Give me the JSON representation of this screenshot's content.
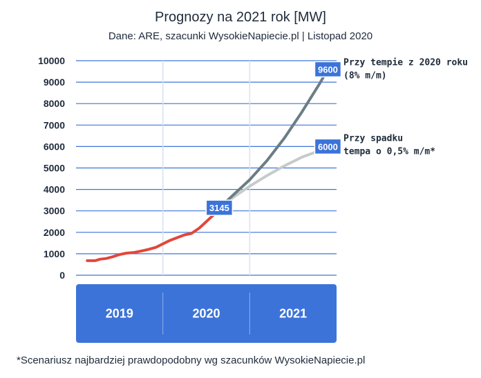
{
  "title": "Prognozy na 2021 rok [MW]",
  "subtitle": "Dane: ARE, szacunki WysokieNapiecie.pl | Listopad 2020",
  "footnote": "*Scenariusz najbardziej prawdopodobny wg szacunków WysokieNapiecie.pl",
  "colors": {
    "history": "#e2473a",
    "scenario_high": "#6b7d85",
    "scenario_low": "#c5cbcb",
    "year_band": "#3c73d9",
    "label_box": "#3c73d9",
    "grid": "#3c73d9"
  },
  "chart_data": {
    "type": "line",
    "title": "Prognozy na 2021 rok [MW]",
    "subtitle": "Dane: ARE, szacunki WysokieNapiecie.pl | Listopad 2020",
    "x_categories": [
      "2019",
      "2020",
      "2021"
    ],
    "x_range": [
      2019.0,
      2022.0
    ],
    "ylim": [
      0,
      10000
    ],
    "yticks": [
      0,
      1000,
      2000,
      3000,
      4000,
      5000,
      6000,
      7000,
      8000,
      9000,
      10000
    ],
    "grid": true,
    "series": [
      {
        "key": "history",
        "x": [
          2019.13,
          2019.22,
          2019.28,
          2019.35,
          2019.42,
          2019.5,
          2019.58,
          2019.67,
          2019.75,
          2019.83,
          2019.92,
          2020.0,
          2020.08,
          2020.17,
          2020.25,
          2020.33,
          2020.42,
          2020.5,
          2020.58,
          2020.65
        ],
        "values": [
          680,
          680,
          750,
          780,
          860,
          960,
          1030,
          1060,
          1130,
          1200,
          1300,
          1460,
          1620,
          1760,
          1880,
          1950,
          2200,
          2500,
          2800,
          3145
        ]
      },
      {
        "key": "high",
        "name": "Przy tempie z 2020 roku (8% m/m)",
        "x": [
          2020.65,
          2020.8,
          2021.0,
          2021.2,
          2021.4,
          2021.6,
          2021.8,
          2021.9
        ],
        "values": [
          3145,
          3700,
          4450,
          5350,
          6400,
          7600,
          8900,
          9600
        ]
      },
      {
        "key": "low",
        "name": "Przy spadku tempa o 0,5% m/m*",
        "x": [
          2020.65,
          2020.8,
          2021.0,
          2021.2,
          2021.4,
          2021.6,
          2021.8,
          2021.9
        ],
        "values": [
          3145,
          3600,
          4150,
          4650,
          5100,
          5500,
          5800,
          6000
        ]
      }
    ],
    "point_labels": [
      {
        "x": 2020.65,
        "value": 3145,
        "text": "3145"
      },
      {
        "x": 2021.9,
        "value": 9600,
        "text": "9600"
      },
      {
        "x": 2021.9,
        "value": 6000,
        "text": "6000"
      }
    ],
    "annotations": [
      {
        "key": "high",
        "lines": [
          "Przy tempie z 2020 roku",
          "(8% m/m)"
        ]
      },
      {
        "key": "low",
        "lines": [
          "Przy spadku",
          "tempa o 0,5% m/m*"
        ]
      }
    ]
  }
}
